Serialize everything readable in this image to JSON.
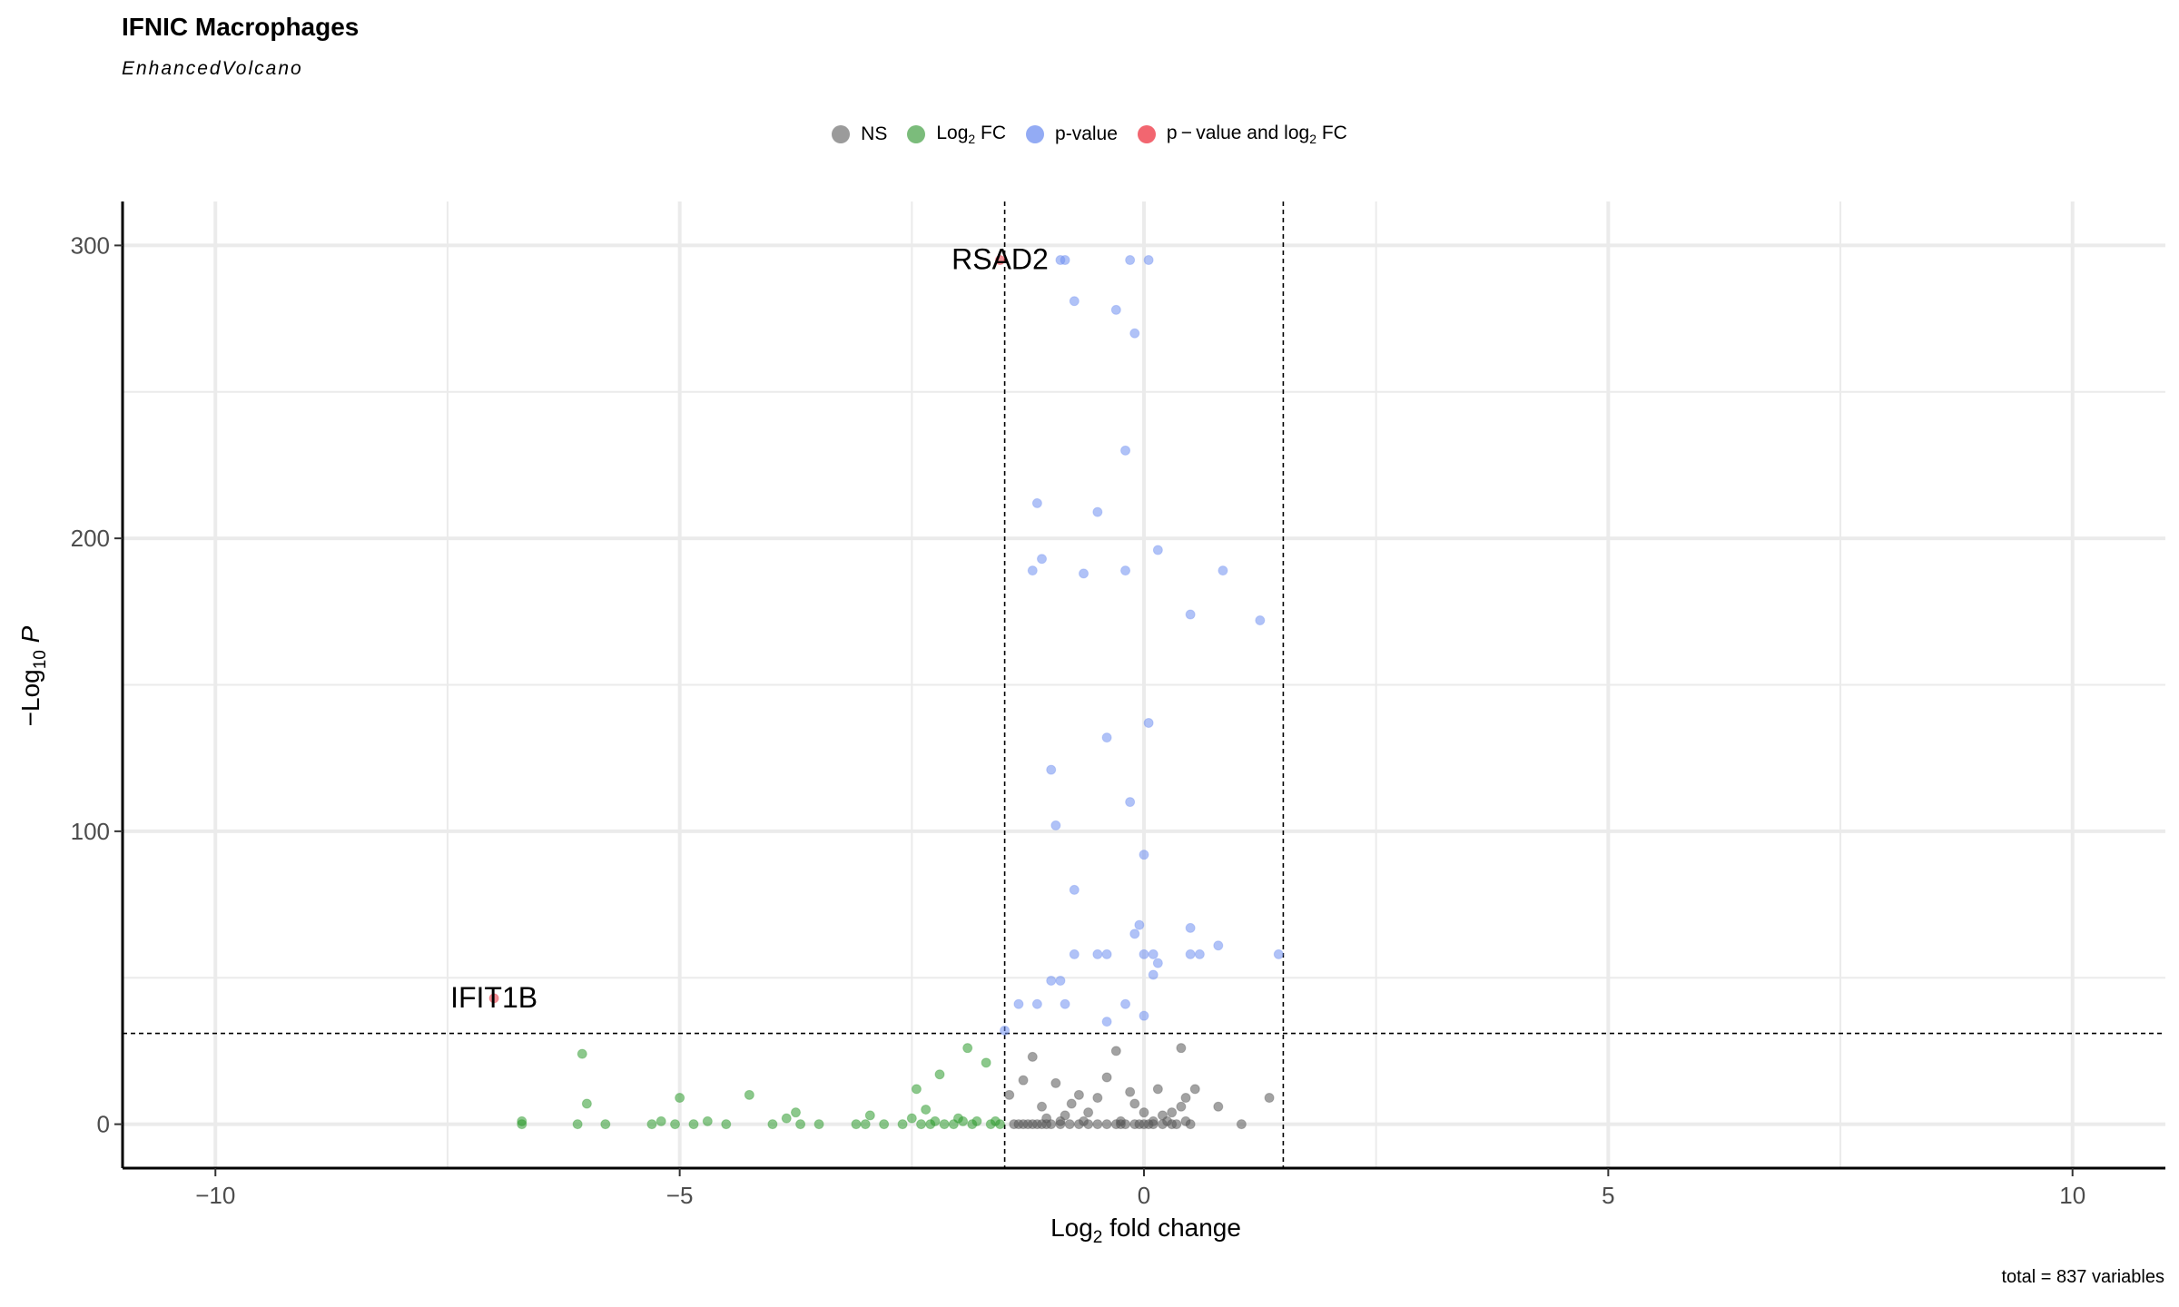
{
  "chart_data": {
    "type": "scatter",
    "title": "IFNIC Macrophages",
    "subtitle": "EnhancedVolcano",
    "xlabel_main": "Log",
    "xlabel_sub": "2",
    "xlabel_rest": " fold change",
    "ylabel_prefix": "−Log",
    "ylabel_sub": "10",
    "ylabel_var": "P",
    "caption": "total = 837 variables",
    "xlim": [
      -11,
      11
    ],
    "ylim": [
      -15,
      315
    ],
    "x_ticks": [
      -10,
      -5,
      0,
      5,
      10
    ],
    "x_tick_labels": [
      "−10",
      "−5",
      "0",
      "5",
      "10"
    ],
    "y_ticks": [
      0,
      100,
      200,
      300
    ],
    "y_tick_labels": [
      "0",
      "100",
      "200",
      "300"
    ],
    "grid": true,
    "fc_cutoff": 1.5,
    "p_cutoff_neglog10": 31,
    "legend_position": "top",
    "legend": [
      {
        "label": "NS",
        "sub": "",
        "suffix": "",
        "color": "#7a7a7a"
      },
      {
        "label": "Log",
        "sub": "2",
        "suffix": " FC",
        "color": "#4fa64f"
      },
      {
        "label": "p-value",
        "sub": "",
        "suffix": "",
        "color": "#6f8ff0"
      },
      {
        "label": "p − value and log",
        "sub": "2",
        "suffix": " FC",
        "color": "#ee3340"
      }
    ],
    "labels": [
      {
        "text": "RSAD2",
        "x": -1.55,
        "y": 295
      },
      {
        "text": "IFIT1B",
        "x": -7.0,
        "y": 43
      }
    ],
    "series": [
      {
        "name": "NS",
        "color": "#555555",
        "points": [
          [
            -1.45,
            10
          ],
          [
            -1.3,
            15
          ],
          [
            -1.2,
            23
          ],
          [
            -1.1,
            6
          ],
          [
            -1.05,
            0
          ],
          [
            -0.95,
            14
          ],
          [
            -0.85,
            3
          ],
          [
            -0.78,
            7
          ],
          [
            -0.7,
            10
          ],
          [
            -0.6,
            4
          ],
          [
            -0.5,
            9
          ],
          [
            -0.4,
            16
          ],
          [
            -0.3,
            25
          ],
          [
            -0.25,
            0
          ],
          [
            -0.15,
            11
          ],
          [
            -0.1,
            7
          ],
          [
            -0.05,
            0
          ],
          [
            0.0,
            4
          ],
          [
            0.05,
            0
          ],
          [
            0.1,
            1
          ],
          [
            0.15,
            12
          ],
          [
            0.2,
            3
          ],
          [
            0.3,
            4
          ],
          [
            0.4,
            6
          ],
          [
            0.45,
            9
          ],
          [
            0.5,
            0
          ],
          [
            0.4,
            26
          ],
          [
            0.55,
            12
          ],
          [
            0.8,
            6
          ],
          [
            1.05,
            0
          ],
          [
            1.35,
            9
          ],
          [
            -1.4,
            0
          ],
          [
            -1.35,
            0
          ],
          [
            -1.3,
            0
          ],
          [
            -1.25,
            0
          ],
          [
            -1.2,
            0
          ],
          [
            -1.15,
            0
          ],
          [
            -1.1,
            0
          ],
          [
            -1.0,
            0
          ],
          [
            -0.9,
            0
          ],
          [
            -0.8,
            0
          ],
          [
            -0.7,
            0
          ],
          [
            -0.6,
            0
          ],
          [
            -0.5,
            0
          ],
          [
            -0.4,
            0
          ],
          [
            -0.3,
            0
          ],
          [
            -0.2,
            0
          ],
          [
            -0.1,
            0
          ],
          [
            0.0,
            0
          ],
          [
            0.2,
            0
          ],
          [
            0.3,
            0
          ],
          [
            0.35,
            0
          ],
          [
            0.45,
            1
          ],
          [
            -0.65,
            1
          ],
          [
            -0.9,
            1
          ],
          [
            -1.05,
            2
          ],
          [
            -0.25,
            1
          ],
          [
            0.1,
            0
          ],
          [
            0.25,
            1
          ]
        ]
      },
      {
        "name": "Log2 FC",
        "color": "#2e9a2e",
        "points": [
          [
            -6.7,
            1
          ],
          [
            -6.7,
            0
          ],
          [
            -6.05,
            24
          ],
          [
            -6.0,
            7
          ],
          [
            -6.1,
            0
          ],
          [
            -5.8,
            0
          ],
          [
            -5.3,
            0
          ],
          [
            -5.2,
            1
          ],
          [
            -5.05,
            0
          ],
          [
            -5.0,
            9
          ],
          [
            -4.85,
            0
          ],
          [
            -4.7,
            1
          ],
          [
            -4.5,
            0
          ],
          [
            -4.25,
            10
          ],
          [
            -4.0,
            0
          ],
          [
            -3.85,
            2
          ],
          [
            -3.75,
            4
          ],
          [
            -3.7,
            0
          ],
          [
            -3.5,
            0
          ],
          [
            -3.1,
            0
          ],
          [
            -3.0,
            0
          ],
          [
            -2.95,
            3
          ],
          [
            -2.8,
            0
          ],
          [
            -2.6,
            0
          ],
          [
            -2.5,
            2
          ],
          [
            -2.45,
            12
          ],
          [
            -2.35,
            5
          ],
          [
            -2.3,
            0
          ],
          [
            -2.2,
            17
          ],
          [
            -2.15,
            0
          ],
          [
            -2.05,
            0
          ],
          [
            -1.95,
            1
          ],
          [
            -1.9,
            26
          ],
          [
            -1.85,
            0
          ],
          [
            -1.7,
            21
          ],
          [
            -1.65,
            0
          ],
          [
            -1.6,
            1
          ],
          [
            -1.55,
            0
          ],
          [
            -2.4,
            0
          ],
          [
            -2.0,
            2
          ],
          [
            -1.8,
            1
          ],
          [
            -2.25,
            1
          ]
        ]
      },
      {
        "name": "p-value",
        "color": "#6f8ff0",
        "points": [
          [
            -0.9,
            295
          ],
          [
            -0.85,
            295
          ],
          [
            0.05,
            295
          ],
          [
            -0.15,
            295
          ],
          [
            -0.75,
            281
          ],
          [
            -0.3,
            278
          ],
          [
            -0.1,
            270
          ],
          [
            -0.2,
            230
          ],
          [
            -1.15,
            212
          ],
          [
            -0.5,
            209
          ],
          [
            -1.1,
            193
          ],
          [
            -1.2,
            189
          ],
          [
            -0.65,
            188
          ],
          [
            -0.2,
            189
          ],
          [
            0.15,
            196
          ],
          [
            0.85,
            189
          ],
          [
            0.5,
            174
          ],
          [
            1.25,
            172
          ],
          [
            -0.4,
            132
          ],
          [
            0.05,
            137
          ],
          [
            -1.0,
            121
          ],
          [
            -0.15,
            110
          ],
          [
            -0.95,
            102
          ],
          [
            0.0,
            92
          ],
          [
            -0.75,
            80
          ],
          [
            -0.05,
            68
          ],
          [
            -0.1,
            65
          ],
          [
            0.5,
            67
          ],
          [
            0.8,
            61
          ],
          [
            -0.75,
            58
          ],
          [
            -0.5,
            58
          ],
          [
            -0.4,
            58
          ],
          [
            0.0,
            58
          ],
          [
            0.1,
            58
          ],
          [
            0.5,
            58
          ],
          [
            0.6,
            58
          ],
          [
            1.45,
            58
          ],
          [
            0.15,
            55
          ],
          [
            0.1,
            51
          ],
          [
            -1.0,
            49
          ],
          [
            -0.9,
            49
          ],
          [
            -1.35,
            41
          ],
          [
            -1.15,
            41
          ],
          [
            -0.85,
            41
          ],
          [
            -0.2,
            41
          ],
          [
            0.0,
            37
          ],
          [
            -0.4,
            35
          ],
          [
            -1.5,
            32
          ]
        ]
      },
      {
        "name": "p-value and log2 FC",
        "color": "#e8303c",
        "points": [
          [
            -1.55,
            295
          ],
          [
            -7.0,
            43
          ]
        ]
      }
    ]
  }
}
